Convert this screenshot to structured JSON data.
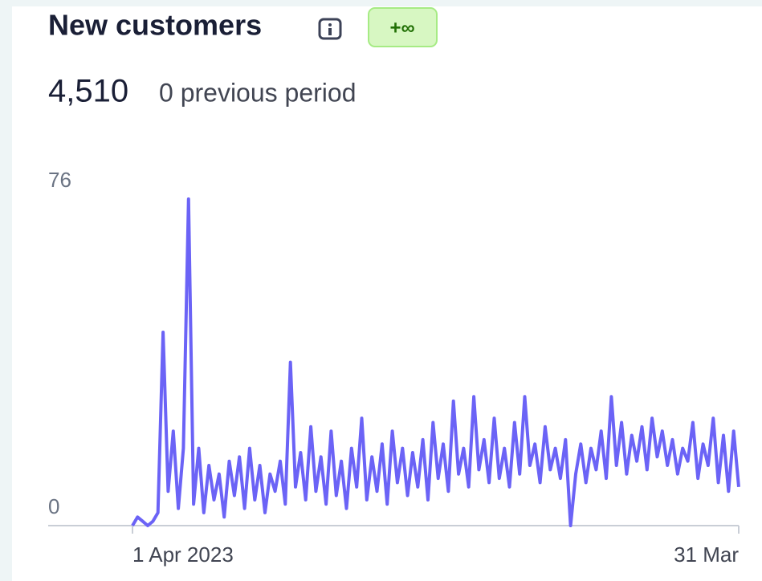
{
  "chart_data": {
    "type": "line",
    "title": "New customers",
    "badge": "+∞",
    "total": "4,510",
    "comparison": "0 previous period",
    "color": "#6b63f6",
    "ylim": [
      0,
      76
    ],
    "yticks": [
      0,
      76
    ],
    "categories": [
      "1 Apr 2023",
      null,
      null,
      null,
      null,
      null,
      null,
      null,
      null,
      null,
      null,
      null,
      null,
      null,
      null,
      null,
      null,
      null,
      null,
      null,
      null,
      null,
      null,
      null,
      null,
      null,
      null,
      null,
      null,
      null,
      null,
      null,
      null,
      null,
      null,
      null,
      null,
      null,
      null,
      null,
      null,
      null,
      null,
      null,
      null,
      null,
      null,
      null,
      null,
      null,
      null,
      null,
      null,
      null,
      null,
      null,
      null,
      null,
      null,
      null,
      null,
      null,
      null,
      null,
      null,
      null,
      null,
      null,
      null,
      null,
      null,
      null,
      null,
      null,
      null,
      null,
      null,
      null,
      null,
      null,
      null,
      null,
      null,
      null,
      null,
      null,
      null,
      null,
      null,
      null,
      null,
      null,
      null,
      null,
      null,
      null,
      null,
      null,
      null,
      null,
      null,
      null,
      null,
      null,
      null,
      null,
      null,
      null,
      null,
      null,
      null,
      null,
      null,
      null,
      null,
      null,
      null,
      null,
      null,
      "31 Mar"
    ],
    "values": [
      0,
      2,
      1,
      0,
      1,
      3,
      45,
      8,
      22,
      4,
      18,
      76,
      5,
      18,
      3,
      14,
      6,
      12,
      2,
      15,
      7,
      16,
      4,
      18,
      6,
      14,
      3,
      12,
      8,
      15,
      5,
      38,
      9,
      17,
      6,
      23,
      8,
      16,
      5,
      22,
      7,
      15,
      4,
      18,
      9,
      25,
      6,
      16,
      8,
      19,
      5,
      22,
      10,
      18,
      7,
      17,
      9,
      20,
      6,
      24,
      11,
      19,
      8,
      29,
      12,
      18,
      9,
      30,
      13,
      20,
      10,
      25,
      11,
      18,
      9,
      24,
      12,
      30,
      14,
      19,
      10,
      23,
      13,
      18,
      11,
      20,
      0,
      12,
      19,
      10,
      18,
      13,
      22,
      11,
      30,
      14,
      24,
      12,
      21,
      15,
      23,
      13,
      25,
      16,
      22,
      14,
      20,
      12,
      18,
      15,
      24,
      11,
      19,
      14,
      25,
      10,
      21,
      8,
      22,
      9
    ]
  }
}
